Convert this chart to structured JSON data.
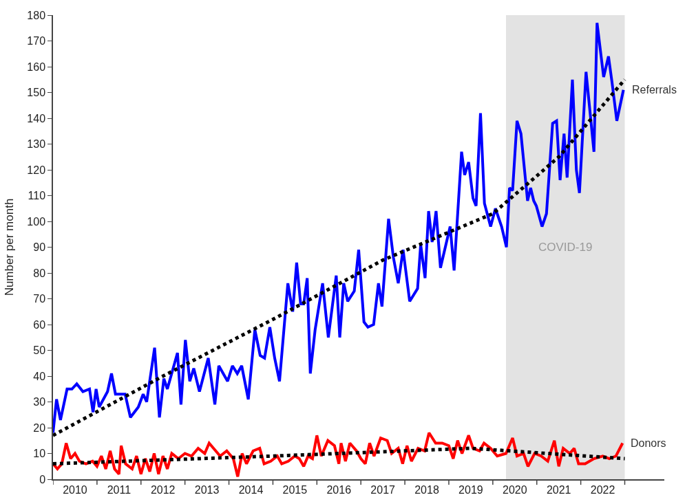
{
  "chart_data": {
    "type": "line",
    "ylabel": "Number per month",
    "xlim": [
      2010,
      2023.9
    ],
    "ylim": [
      0,
      180
    ],
    "yticks": [
      0,
      10,
      20,
      30,
      40,
      50,
      60,
      70,
      80,
      90,
      100,
      110,
      120,
      130,
      140,
      150,
      160,
      170,
      180
    ],
    "xticks": [
      {
        "value": 2010,
        "label": null
      },
      {
        "value": 2010.5,
        "label": "2010"
      },
      {
        "value": 2011,
        "label": null
      },
      {
        "value": 2011.5,
        "label": "2011"
      },
      {
        "value": 2012,
        "label": null
      },
      {
        "value": 2012.5,
        "label": "2012"
      },
      {
        "value": 2013,
        "label": null
      },
      {
        "value": 2013.5,
        "label": "2013"
      },
      {
        "value": 2014,
        "label": null
      },
      {
        "value": 2014.5,
        "label": "2014"
      },
      {
        "value": 2015,
        "label": null
      },
      {
        "value": 2015.5,
        "label": "2015"
      },
      {
        "value": 2016,
        "label": null
      },
      {
        "value": 2016.5,
        "label": "2016"
      },
      {
        "value": 2017,
        "label": null
      },
      {
        "value": 2017.5,
        "label": "2017"
      },
      {
        "value": 2018,
        "label": null
      },
      {
        "value": 2018.5,
        "label": "2018"
      },
      {
        "value": 2019,
        "label": null
      },
      {
        "value": 2019.5,
        "label": "2019"
      },
      {
        "value": 2020,
        "label": null
      },
      {
        "value": 2020.5,
        "label": "2020"
      },
      {
        "value": 2021,
        "label": null
      },
      {
        "value": 2021.5,
        "label": "2021"
      },
      {
        "value": 2022,
        "label": null
      },
      {
        "value": 2022.5,
        "label": "2022"
      },
      {
        "value": 2023,
        "label": null
      }
    ],
    "grid": false,
    "legend": false,
    "marker": "none",
    "bands": [
      {
        "axis": "x",
        "from": 2020.3,
        "to": 2023,
        "label": "COVID-19",
        "color": "#e3e3e3"
      }
    ],
    "series": [
      {
        "name": "Referrals",
        "color": "#0000ff",
        "line_style": "solid",
        "x": [
          2010.0,
          2010.08,
          2010.17,
          2010.32,
          2010.43,
          2010.54,
          2010.68,
          2010.83,
          2010.91,
          2010.98,
          2011.05,
          2011.24,
          2011.33,
          2011.42,
          2011.64,
          2011.76,
          2011.94,
          2012.05,
          2012.13,
          2012.31,
          2012.42,
          2012.52,
          2012.6,
          2012.83,
          2012.91,
          2013.01,
          2013.11,
          2013.2,
          2013.33,
          2013.53,
          2013.68,
          2013.77,
          2013.97,
          2014.08,
          2014.19,
          2014.29,
          2014.44,
          2014.59,
          2014.71,
          2014.81,
          2014.93,
          2015.04,
          2015.15,
          2015.34,
          2015.45,
          2015.54,
          2015.63,
          2015.7,
          2015.78,
          2015.85,
          2015.96,
          2016.13,
          2016.26,
          2016.44,
          2016.52,
          2016.61,
          2016.7,
          2016.85,
          2016.95,
          2017.07,
          2017.16,
          2017.29,
          2017.4,
          2017.48,
          2017.63,
          2017.74,
          2017.85,
          2017.96,
          2018.11,
          2018.29,
          2018.36,
          2018.46,
          2018.54,
          2018.62,
          2018.71,
          2018.81,
          2019.03,
          2019.12,
          2019.29,
          2019.36,
          2019.45,
          2019.55,
          2019.62,
          2019.72,
          2019.81,
          2019.95,
          2020.06,
          2020.2,
          2020.31,
          2020.38,
          2020.45,
          2020.55,
          2020.64,
          2020.79,
          2020.86,
          2020.93,
          2020.99,
          2021.12,
          2021.22,
          2021.36,
          2021.45,
          2021.53,
          2021.62,
          2021.69,
          2021.81,
          2021.9,
          2021.97,
          2022.12,
          2022.3,
          2022.37,
          2022.52,
          2022.63,
          2022.71,
          2022.82,
          2022.97
        ],
        "values": [
          18,
          31,
          23,
          35,
          35,
          37,
          34,
          35,
          26,
          35,
          28,
          34,
          41,
          33,
          33,
          24,
          28,
          33,
          30,
          51,
          24,
          39,
          35,
          49,
          29,
          54,
          38,
          43,
          34,
          47,
          29,
          44,
          38,
          44,
          41,
          44,
          31,
          58,
          48,
          47,
          59,
          47,
          38,
          76,
          65,
          84,
          68,
          68,
          78,
          41,
          58,
          76,
          55,
          79,
          55,
          76,
          69,
          73,
          89,
          61,
          59,
          60,
          76,
          67,
          101,
          86,
          76,
          89,
          69,
          74,
          91,
          78,
          104,
          92,
          104,
          82,
          98,
          81,
          127,
          118,
          123,
          109,
          106,
          142,
          107,
          98,
          105,
          98,
          90,
          113,
          112,
          139,
          134,
          108,
          113,
          108,
          106,
          98,
          103,
          138,
          139,
          116,
          134,
          117,
          155,
          120,
          111,
          158,
          127,
          177,
          156,
          164,
          154,
          139,
          151
        ]
      },
      {
        "name": "Donors",
        "color": "#ff0000",
        "line_style": "solid",
        "x": [
          2010.0,
          2010.1,
          2010.2,
          2010.3,
          2010.4,
          2010.5,
          2010.6,
          2010.75,
          2010.9,
          2011.0,
          2011.1,
          2011.2,
          2011.3,
          2011.4,
          2011.5,
          2011.55,
          2011.65,
          2011.8,
          2011.9,
          2012.0,
          2012.1,
          2012.2,
          2012.3,
          2012.4,
          2012.5,
          2012.6,
          2012.7,
          2012.85,
          2013.0,
          2013.15,
          2013.3,
          2013.45,
          2013.55,
          2013.65,
          2013.8,
          2013.95,
          2014.1,
          2014.2,
          2014.3,
          2014.4,
          2014.55,
          2014.7,
          2014.8,
          2014.95,
          2015.1,
          2015.2,
          2015.35,
          2015.5,
          2015.6,
          2015.7,
          2015.8,
          2015.9,
          2016.0,
          2016.1,
          2016.25,
          2016.4,
          2016.5,
          2016.55,
          2016.65,
          2016.75,
          2016.9,
          2017.0,
          2017.1,
          2017.2,
          2017.3,
          2017.45,
          2017.6,
          2017.7,
          2017.85,
          2017.95,
          2018.05,
          2018.15,
          2018.3,
          2018.45,
          2018.55,
          2018.7,
          2018.85,
          2019.0,
          2019.1,
          2019.2,
          2019.3,
          2019.45,
          2019.55,
          2019.7,
          2019.8,
          2019.95,
          2020.1,
          2020.3,
          2020.45,
          2020.55,
          2020.7,
          2020.8,
          2020.95,
          2021.1,
          2021.25,
          2021.4,
          2021.5,
          2021.6,
          2021.75,
          2021.85,
          2021.95,
          2022.1,
          2022.3,
          2022.5,
          2022.65,
          2022.8,
          2022.95
        ],
        "values": [
          6,
          4,
          6,
          14,
          8,
          10,
          7,
          6,
          7,
          5,
          9,
          4,
          11,
          4,
          2,
          13,
          6,
          4,
          9,
          2,
          8,
          3,
          10,
          2,
          9,
          4,
          10,
          8,
          10,
          9,
          12,
          10,
          14,
          12,
          9,
          11,
          8,
          1,
          10,
          6,
          11,
          12,
          6,
          7,
          9,
          6,
          7,
          9,
          8,
          5,
          9,
          8,
          17,
          9,
          15,
          13,
          6,
          14,
          7,
          14,
          11,
          8,
          6,
          14,
          9,
          16,
          15,
          10,
          12,
          6,
          13,
          7,
          12,
          11,
          18,
          14,
          14,
          13,
          8,
          15,
          10,
          17,
          12,
          11,
          14,
          12,
          9,
          10,
          16,
          9,
          10,
          5,
          10,
          9,
          7,
          15,
          5,
          12,
          10,
          12,
          6,
          6,
          8,
          9,
          8,
          9,
          14
        ]
      },
      {
        "color": "#000000",
        "line_style": "dotted",
        "x": [
          2010.0,
          2012.5,
          2015.0,
          2017.5,
          2020.0,
          2021.5,
          2023.0
        ],
        "values": [
          17,
          40,
          62,
          85,
          103,
          125,
          155
        ]
      },
      {
        "color": "#000000",
        "line_style": "dotted",
        "x": [
          2010.0,
          2015.0,
          2019.5,
          2023.0
        ],
        "values": [
          6,
          9,
          12,
          8
        ]
      }
    ]
  }
}
